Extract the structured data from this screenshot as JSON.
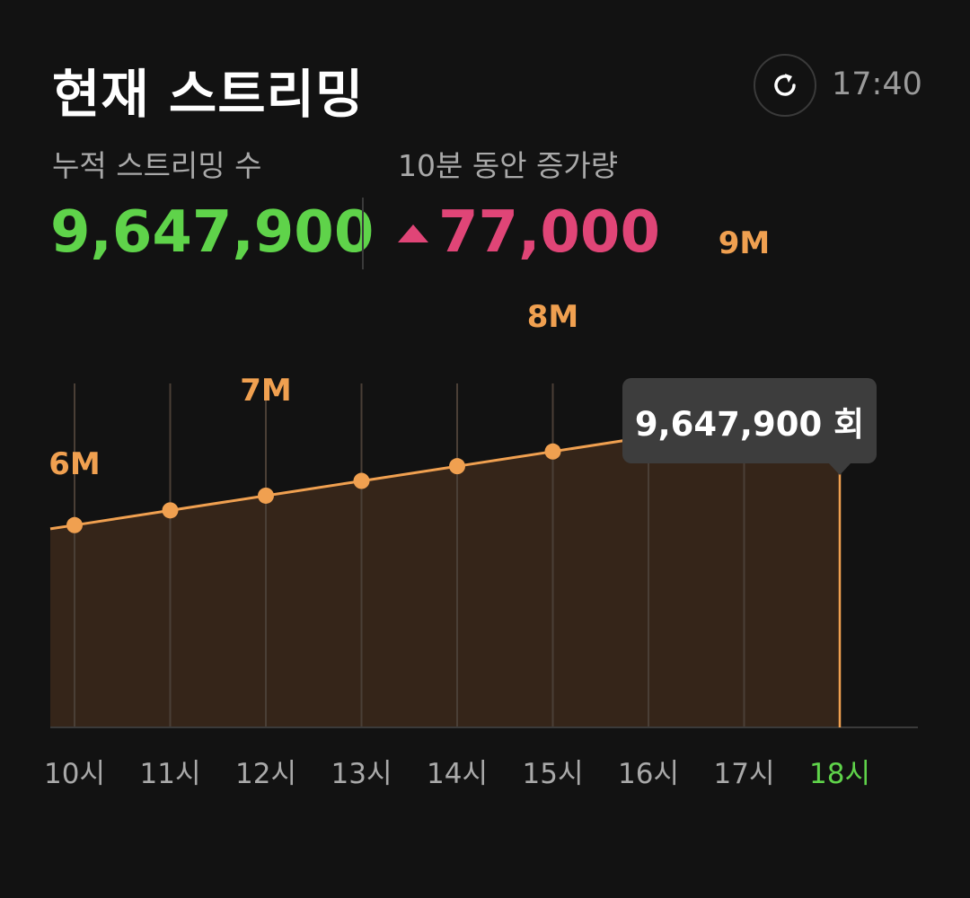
{
  "header": {
    "title": "현재 스트리밍",
    "refresh_icon": "refresh-icon",
    "time": "17:40"
  },
  "stats": {
    "cumulative_label": "누적 스트리밍 수",
    "cumulative_value": "9,647,900",
    "increase_label": "10분 동안 증가량",
    "increase_value": "77,000",
    "increase_icon": "triangle-up-icon"
  },
  "colors": {
    "background": "#121212",
    "cumulative": "#5fd34a",
    "increase": "#e04577",
    "line": "#f0a050",
    "area": "#352519",
    "active_hour": "#5fd34a",
    "hour_label": "#a9a9a9",
    "tooltip_bg": "#3d3d3d"
  },
  "tooltip": {
    "text": "9,647,900 회"
  },
  "chart_data": {
    "type": "area",
    "x": [
      "10시",
      "11시",
      "12시",
      "13시",
      "14시",
      "15시",
      "16시",
      "17시",
      "18시"
    ],
    "values": [
      5820000,
      6020000,
      6220000,
      6420000,
      6620000,
      6820000,
      7020000,
      7220000,
      9647900
    ],
    "y_tick_labels": [
      {
        "x_index": 0,
        "text": "6M",
        "value": 6000000
      },
      {
        "x_index": 2,
        "text": "7M",
        "value": 7000000
      },
      {
        "x_index": 5,
        "text": "8M",
        "value": 8000000
      },
      {
        "x_index": 7,
        "text": "9M",
        "value": 9000000
      }
    ],
    "highlighted_x": "18시",
    "grid": true
  }
}
